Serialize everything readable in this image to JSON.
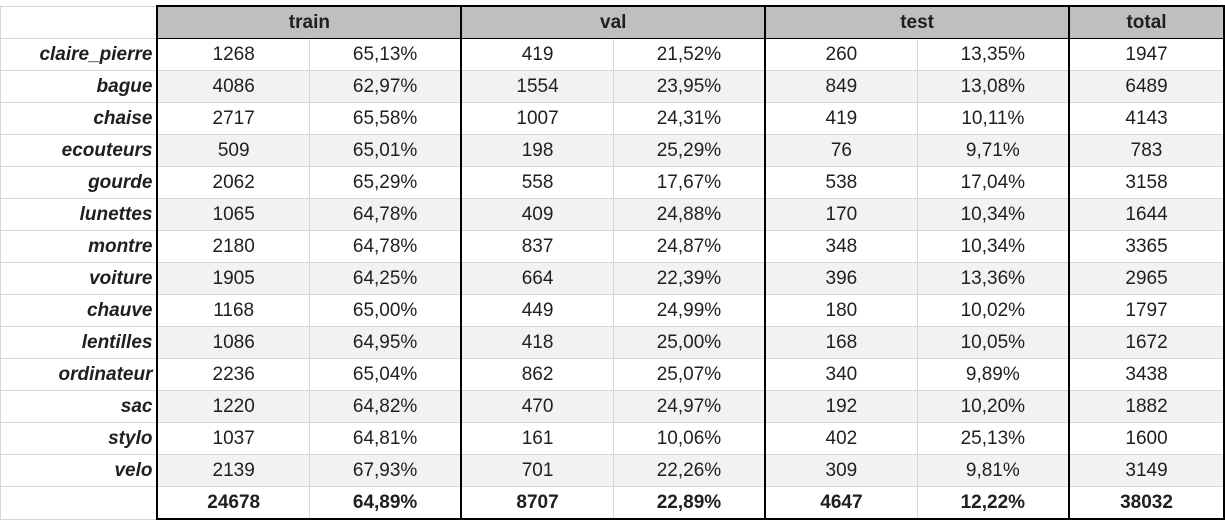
{
  "headers": {
    "corner": "",
    "train": "train",
    "val": "val",
    "test": "test",
    "total": "total"
  },
  "rows": [
    {
      "label": "claire_pierre",
      "train_n": "1268",
      "train_p": "65,13%",
      "val_n": "419",
      "val_p": "21,52%",
      "test_n": "260",
      "test_p": "13,35%",
      "total": "1947"
    },
    {
      "label": "bague",
      "train_n": "4086",
      "train_p": "62,97%",
      "val_n": "1554",
      "val_p": "23,95%",
      "test_n": "849",
      "test_p": "13,08%",
      "total": "6489"
    },
    {
      "label": "chaise",
      "train_n": "2717",
      "train_p": "65,58%",
      "val_n": "1007",
      "val_p": "24,31%",
      "test_n": "419",
      "test_p": "10,11%",
      "total": "4143"
    },
    {
      "label": "ecouteurs",
      "train_n": "509",
      "train_p": "65,01%",
      "val_n": "198",
      "val_p": "25,29%",
      "test_n": "76",
      "test_p": "9,71%",
      "total": "783"
    },
    {
      "label": "gourde",
      "train_n": "2062",
      "train_p": "65,29%",
      "val_n": "558",
      "val_p": "17,67%",
      "test_n": "538",
      "test_p": "17,04%",
      "total": "3158"
    },
    {
      "label": "lunettes",
      "train_n": "1065",
      "train_p": "64,78%",
      "val_n": "409",
      "val_p": "24,88%",
      "test_n": "170",
      "test_p": "10,34%",
      "total": "1644"
    },
    {
      "label": "montre",
      "train_n": "2180",
      "train_p": "64,78%",
      "val_n": "837",
      "val_p": "24,87%",
      "test_n": "348",
      "test_p": "10,34%",
      "total": "3365"
    },
    {
      "label": "voiture",
      "train_n": "1905",
      "train_p": "64,25%",
      "val_n": "664",
      "val_p": "22,39%",
      "test_n": "396",
      "test_p": "13,36%",
      "total": "2965"
    },
    {
      "label": "chauve",
      "train_n": "1168",
      "train_p": "65,00%",
      "val_n": "449",
      "val_p": "24,99%",
      "test_n": "180",
      "test_p": "10,02%",
      "total": "1797"
    },
    {
      "label": "lentilles",
      "train_n": "1086",
      "train_p": "64,95%",
      "val_n": "418",
      "val_p": "25,00%",
      "test_n": "168",
      "test_p": "10,05%",
      "total": "1672"
    },
    {
      "label": "ordinateur",
      "train_n": "2236",
      "train_p": "65,04%",
      "val_n": "862",
      "val_p": "25,07%",
      "test_n": "340",
      "test_p": "9,89%",
      "total": "3438"
    },
    {
      "label": "sac",
      "train_n": "1220",
      "train_p": "64,82%",
      "val_n": "470",
      "val_p": "24,97%",
      "test_n": "192",
      "test_p": "10,20%",
      "total": "1882"
    },
    {
      "label": "stylo",
      "train_n": "1037",
      "train_p": "64,81%",
      "val_n": "161",
      "val_p": "10,06%",
      "test_n": "402",
      "test_p": "25,13%",
      "total": "1600"
    },
    {
      "label": "velo",
      "train_n": "2139",
      "train_p": "67,93%",
      "val_n": "701",
      "val_p": "22,26%",
      "test_n": "309",
      "test_p": "9,81%",
      "total": "3149"
    }
  ],
  "totals": {
    "label": "",
    "train_n": "24678",
    "train_p": "64,89%",
    "val_n": "8707",
    "val_p": "22,89%",
    "test_n": "4647",
    "test_p": "12,22%",
    "total": "38032"
  },
  "colors": {
    "header_bg": "#bfbfbf",
    "band_bg": "#f2f2f2",
    "grid": "#d6d6d6",
    "border": "#000000"
  }
}
